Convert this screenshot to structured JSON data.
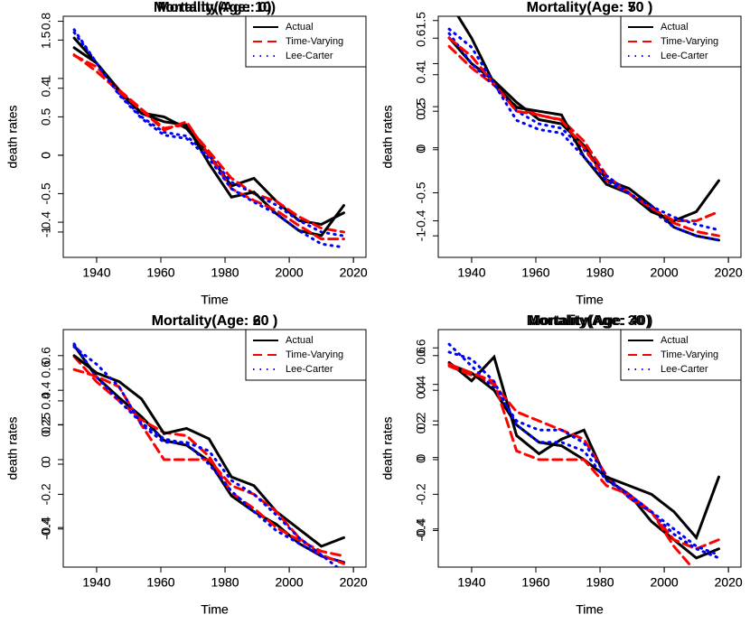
{
  "chart_data": [
    {
      "type": "line",
      "title": "Mortality(Age: 0)",
      "x_label": "Time",
      "y_label": "death rates",
      "legend": "topright",
      "x": [
        1933,
        1940,
        1947,
        1954,
        1961,
        1968,
        1975,
        1982,
        1989,
        1996,
        2003,
        2010,
        2017
      ],
      "xlim": [
        1929.6,
        2023.9
      ],
      "xticks": [
        1940,
        1960,
        1980,
        2000,
        2020
      ],
      "ylim": [
        -1.33,
        1.81
      ],
      "yticks": [
        -1.0,
        -0.5,
        0.0,
        0.5,
        1.0,
        1.5
      ],
      "series": [
        {
          "name": "Actual",
          "color": "#000000",
          "style": "solid",
          "values": [
            1.4,
            1.2,
            0.85,
            0.55,
            0.5,
            0.35,
            0.0,
            -0.4,
            -0.3,
            -0.6,
            -0.85,
            -0.9,
            -0.75
          ]
        },
        {
          "name": "Time-Varying",
          "color": "#ff0000",
          "style": "dashed",
          "values": [
            1.3,
            1.15,
            0.85,
            0.6,
            0.35,
            0.4,
            0.05,
            -0.3,
            -0.5,
            -0.6,
            -0.8,
            -0.95,
            -1.0
          ]
        },
        {
          "name": "Lee-Carter",
          "color": "#0000ff",
          "style": "dotted",
          "values": [
            1.6,
            1.2,
            0.8,
            0.5,
            0.3,
            0.25,
            0.0,
            -0.35,
            -0.5,
            -0.65,
            -0.85,
            -1.0,
            -1.05
          ]
        }
      ]
    },
    {
      "type": "line",
      "title": "Mortality(Age: 10)",
      "x_label": "Time",
      "y_label": "death rates",
      "legend": "topright",
      "x": [
        1933,
        1940,
        1947,
        1954,
        1961,
        1968,
        1975,
        1982,
        1989,
        1996,
        2003,
        2010,
        2017
      ],
      "xlim": [
        1929.6,
        2023.9
      ],
      "xticks": [
        1940,
        1960,
        1980,
        2000,
        2020
      ],
      "ylim": [
        -0.61,
        0.83
      ],
      "yticks": [
        -0.4,
        0.0,
        0.4,
        0.8
      ],
      "series": [
        {
          "name": "Actual",
          "color": "#000000",
          "style": "solid",
          "values": [
            0.7,
            0.55,
            0.38,
            0.25,
            0.2,
            0.18,
            -0.05,
            -0.25,
            -0.22,
            -0.35,
            -0.45,
            -0.48,
            -0.3
          ]
        },
        {
          "name": "Time-Varying",
          "color": "#ff0000",
          "style": "dashed",
          "values": [
            0.6,
            0.5,
            0.38,
            0.27,
            0.15,
            0.2,
            0.0,
            -0.2,
            -0.27,
            -0.33,
            -0.42,
            -0.5,
            -0.5
          ]
        },
        {
          "name": "Lee-Carter",
          "color": "#0000ff",
          "style": "dotted",
          "values": [
            0.75,
            0.55,
            0.36,
            0.22,
            0.12,
            0.1,
            -0.02,
            -0.2,
            -0.28,
            -0.35,
            -0.45,
            -0.53,
            -0.55
          ]
        }
      ]
    },
    {
      "type": "line",
      "title": "Mortality(Age: 50 )",
      "x_label": "Time",
      "y_label": "death rates",
      "legend": "topright",
      "x": [
        1933,
        1940,
        1947,
        1954,
        1961,
        1968,
        1975,
        1982,
        1989,
        1996,
        2003,
        2010,
        2017
      ],
      "xlim": [
        1929.6,
        2023.9
      ],
      "xticks": [
        1940,
        1960,
        1980,
        2000,
        2020
      ],
      "ylim": [
        -1.25,
        1.55
      ],
      "yticks": [
        -1.0,
        -0.5,
        0.0,
        0.5,
        1.0,
        1.5
      ],
      "series": [
        {
          "name": "Actual",
          "color": "#000000",
          "style": "solid",
          "values": [
            1.3,
            1.0,
            0.8,
            0.55,
            0.35,
            0.3,
            0.05,
            -0.35,
            -0.45,
            -0.65,
            -0.9,
            -1.0,
            -1.05
          ]
        },
        {
          "name": "Time-Varying",
          "color": "#ff0000",
          "style": "dashed",
          "values": [
            1.2,
            0.95,
            0.75,
            0.5,
            0.4,
            0.35,
            0.1,
            -0.3,
            -0.5,
            -0.7,
            -0.85,
            -0.95,
            -1.0
          ]
        },
        {
          "name": "Lee-Carter",
          "color": "#0000ff",
          "style": "dotted",
          "values": [
            1.35,
            1.0,
            0.75,
            0.45,
            0.3,
            0.25,
            0.0,
            -0.3,
            -0.5,
            -0.7,
            -0.9,
            -1.0,
            -1.05
          ]
        }
      ]
    },
    {
      "type": "line",
      "title": "Mortality(Age: 60 )",
      "x_label": "Time",
      "y_label": "death rates",
      "legend": "topright",
      "x": [
        1933,
        1940,
        1947,
        1954,
        1961,
        1968,
        1975,
        1982,
        1989,
        1996,
        2003,
        2010,
        2017
      ],
      "xlim": [
        1929.6,
        2023.9
      ],
      "xticks": [
        1940,
        1960,
        1980,
        2000,
        2020
      ],
      "ylim": [
        -0.65,
        0.85
      ],
      "yticks": [
        -0.4,
        0.0,
        0.25,
        0.4,
        0.6
      ],
      "series": [
        {
          "name": "Actual",
          "color": "#000000",
          "style": "solid",
          "values": [
            0.75,
            0.55,
            0.42,
            0.3,
            0.15,
            0.12,
            0.02,
            -0.2,
            -0.3,
            -0.38,
            -0.5,
            -0.58,
            -0.62
          ]
        },
        {
          "name": "Time-Varying",
          "color": "#ff0000",
          "style": "dashed",
          "values": [
            0.68,
            0.52,
            0.4,
            0.28,
            0.2,
            0.18,
            0.05,
            -0.18,
            -0.28,
            -0.4,
            -0.48,
            -0.55,
            -0.58
          ]
        },
        {
          "name": "Lee-Carter",
          "color": "#0000ff",
          "style": "dotted",
          "values": [
            0.76,
            0.55,
            0.4,
            0.26,
            0.16,
            0.13,
            0.0,
            -0.17,
            -0.3,
            -0.42,
            -0.5,
            -0.58,
            -0.62
          ]
        }
      ]
    },
    {
      "type": "line",
      "title": "Mortality(Age: 20 )",
      "x_label": "Time",
      "y_label": "death rates",
      "legend": "topright",
      "x": [
        1933,
        1940,
        1947,
        1954,
        1961,
        1968,
        1975,
        1982,
        1989,
        1996,
        2003,
        2010,
        2017
      ],
      "xlim": [
        1929.6,
        2023.9
      ],
      "xticks": [
        1940,
        1960,
        1980,
        2000,
        2020
      ],
      "ylim": [
        -0.62,
        0.75
      ],
      "yticks": [
        -0.4,
        -0.2,
        0.0,
        0.2,
        0.4,
        0.6
      ],
      "series": [
        {
          "name": "Actual",
          "color": "#000000",
          "style": "solid",
          "values": [
            0.6,
            0.5,
            0.45,
            0.35,
            0.15,
            0.18,
            0.12,
            -0.1,
            -0.15,
            -0.3,
            -0.4,
            -0.5,
            -0.45
          ]
        },
        {
          "name": "Time-Varying",
          "color": "#ff0000",
          "style": "dashed",
          "values": [
            0.52,
            0.48,
            0.42,
            0.2,
            0.0,
            0.0,
            0.0,
            -0.15,
            -0.2,
            -0.3,
            -0.45,
            -0.55,
            -0.6
          ]
        },
        {
          "name": "Lee-Carter",
          "color": "#0000ff",
          "style": "dotted",
          "values": [
            0.65,
            0.55,
            0.42,
            0.2,
            0.1,
            0.1,
            0.05,
            -0.12,
            -0.2,
            -0.32,
            -0.45,
            -0.55,
            -0.65
          ]
        }
      ]
    },
    {
      "type": "line",
      "title": "Mortality(Age: 40)",
      "x_label": "Time",
      "y_label": "death rates",
      "legend": "topright",
      "x": [
        1933,
        1940,
        1947,
        1954,
        1961,
        1968,
        1975,
        1982,
        1989,
        1996,
        2003,
        2010,
        2017
      ],
      "xlim": [
        1929.6,
        2023.9
      ],
      "xticks": [
        1940,
        1960,
        1980,
        2000,
        2020
      ],
      "ylim": [
        -0.6,
        0.7
      ],
      "yticks": [
        -0.4,
        0.0,
        0.2,
        0.4,
        0.6
      ],
      "series": [
        {
          "name": "Actual",
          "color": "#000000",
          "style": "solid",
          "values": [
            0.52,
            0.42,
            0.55,
            0.12,
            0.02,
            0.1,
            0.15,
            -0.12,
            -0.2,
            -0.35,
            -0.45,
            -0.55,
            -0.5
          ]
        },
        {
          "name": "Time-Varying",
          "color": "#ff0000",
          "style": "dashed",
          "values": [
            0.5,
            0.45,
            0.4,
            0.25,
            0.2,
            0.15,
            0.1,
            -0.1,
            -0.22,
            -0.3,
            -0.45,
            -0.5,
            -0.45
          ]
        },
        {
          "name": "Lee-Carter",
          "color": "#0000ff",
          "style": "dotted",
          "values": [
            0.62,
            0.5,
            0.38,
            0.2,
            0.15,
            0.15,
            0.08,
            -0.1,
            -0.22,
            -0.3,
            -0.42,
            -0.5,
            -0.55
          ]
        }
      ]
    },
    {
      "type": "line",
      "title": "Mortality(Age: 30 )",
      "x_label": "Time",
      "y_label": "death rates",
      "legend": "topright",
      "x": [
        1933,
        1940,
        1947,
        1954,
        1961,
        1968,
        1975,
        1982,
        1989,
        1996,
        2003,
        2010,
        2017
      ],
      "xlim": [
        1929.6,
        2023.9
      ],
      "xticks": [
        1940,
        1960,
        1980,
        2000,
        2020
      ],
      "ylim": [
        -0.62,
        0.75
      ],
      "yticks": [
        -0.4,
        -0.2,
        0.0,
        0.2,
        0.4,
        0.6
      ],
      "series": [
        {
          "name": "Actual",
          "color": "#000000",
          "style": "solid",
          "values": [
            0.55,
            0.5,
            0.4,
            0.2,
            0.1,
            0.08,
            0.0,
            -0.1,
            -0.15,
            -0.2,
            -0.3,
            -0.45,
            -0.1
          ]
        },
        {
          "name": "Time-Varying",
          "color": "#ff0000",
          "style": "dashed",
          "values": [
            0.55,
            0.5,
            0.45,
            0.05,
            0.0,
            0.0,
            0.0,
            -0.15,
            -0.2,
            -0.3,
            -0.5,
            -0.65,
            -0.65
          ]
        },
        {
          "name": "Lee-Carter",
          "color": "#0000ff",
          "style": "dotted",
          "values": [
            0.62,
            0.58,
            0.45,
            0.2,
            0.1,
            0.1,
            0.05,
            -0.12,
            -0.2,
            -0.3,
            -0.4,
            -0.5,
            -0.55
          ]
        }
      ]
    },
    {
      "type": "line",
      "title": "Mortality(Age: 70 )",
      "x_label": "Time",
      "y_label": "death rates",
      "legend": "topright",
      "x": [
        1933,
        1940,
        1947,
        1954,
        1961,
        1968,
        1975,
        1982,
        1989,
        1996,
        2003,
        2010,
        2017
      ],
      "xlim": [
        1929.6,
        2023.9
      ],
      "xticks": [
        1940,
        1960,
        1980,
        2000,
        2020
      ],
      "ylim": [
        -0.6,
        0.72
      ],
      "yticks": [
        -0.4,
        0.0,
        0.2,
        0.4,
        0.6
      ],
      "series": [
        {
          "name": "Actual",
          "color": "#000000",
          "style": "solid",
          "values": [
            0.8,
            0.6,
            0.35,
            0.22,
            0.2,
            0.18,
            -0.05,
            -0.2,
            -0.25,
            -0.35,
            -0.4,
            -0.35,
            -0.18
          ]
        },
        {
          "name": "Time-Varying",
          "color": "#ff0000",
          "style": "dashed",
          "values": [
            0.6,
            0.5,
            0.35,
            0.2,
            0.18,
            0.15,
            0.0,
            -0.18,
            -0.25,
            -0.33,
            -0.4,
            -0.4,
            -0.35
          ]
        },
        {
          "name": "Lee-Carter",
          "color": "#0000ff",
          "style": "dotted",
          "values": [
            0.65,
            0.55,
            0.35,
            0.15,
            0.1,
            0.08,
            -0.05,
            -0.18,
            -0.25,
            -0.32,
            -0.38,
            -0.42,
            -0.45
          ]
        }
      ]
    }
  ]
}
